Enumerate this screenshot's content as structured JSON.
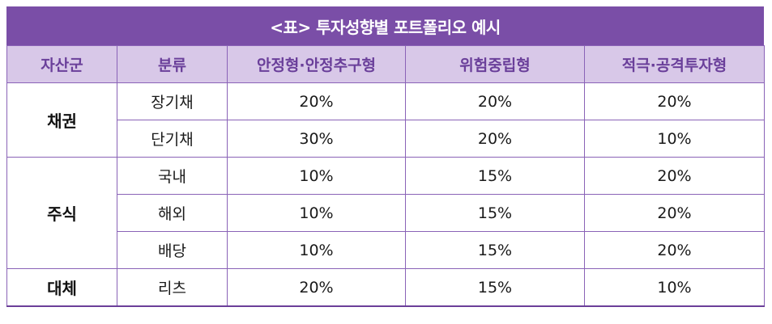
{
  "title": "<표> 투자성향별 포트폴리오 예시",
  "headers": [
    "자산군",
    "분류",
    "안정형·안정추구형",
    "위험중립형",
    "적극·공격투자형"
  ],
  "groups": {
    "bond": "채권",
    "stock": "주식",
    "alt": "대체"
  },
  "rows": [
    {
      "category": "장기채",
      "stable": "20%",
      "neutral": "20%",
      "aggressive": "20%"
    },
    {
      "category": "단기채",
      "stable": "30%",
      "neutral": "20%",
      "aggressive": "10%"
    },
    {
      "category": "국내",
      "stable": "10%",
      "neutral": "15%",
      "aggressive": "20%"
    },
    {
      "category": "해외",
      "stable": "10%",
      "neutral": "15%",
      "aggressive": "20%"
    },
    {
      "category": "배당",
      "stable": "10%",
      "neutral": "15%",
      "aggressive": "20%"
    },
    {
      "category": "리츠",
      "stable": "20%",
      "neutral": "15%",
      "aggressive": "10%"
    }
  ],
  "colors": {
    "title_bg": "#7a4ea7",
    "header_bg": "#d8c8e8",
    "header_text": "#6a3f9a",
    "border": "#8a63b7"
  }
}
